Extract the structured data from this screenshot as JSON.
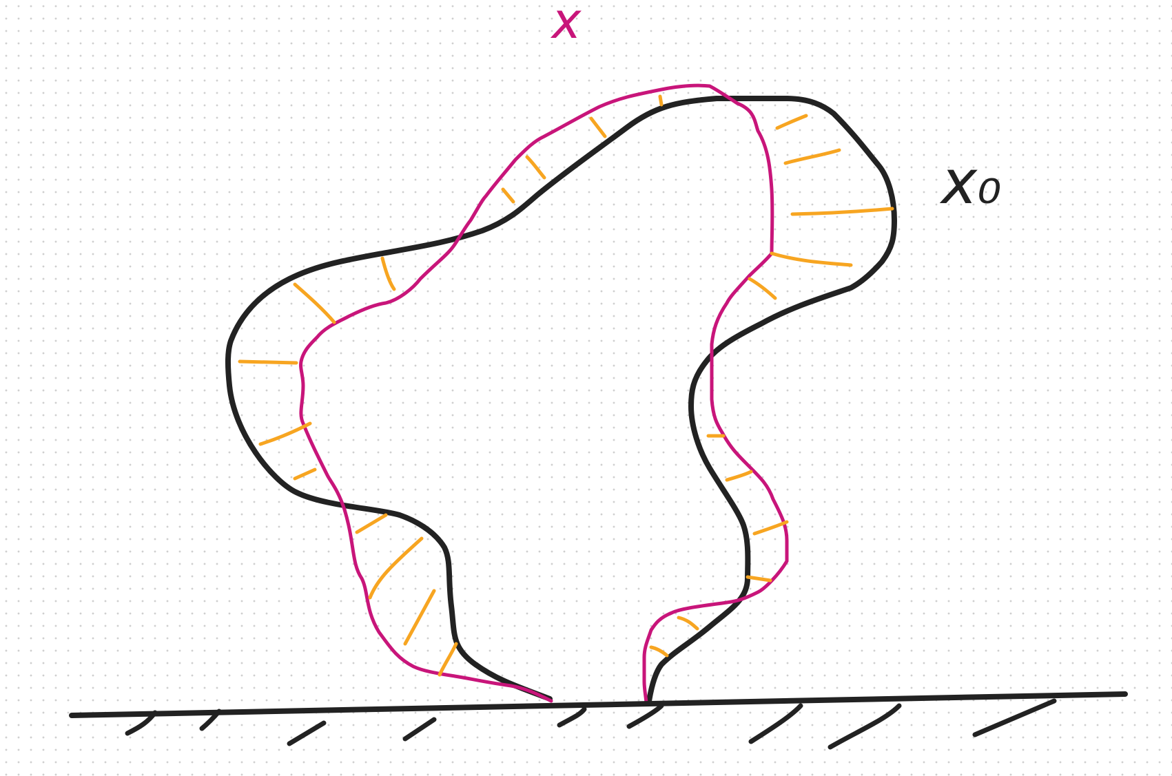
{
  "labels": {
    "deformed_label": "x",
    "reference_label": "x₀"
  },
  "colors": {
    "reference_outline": "#222222",
    "deformed_outline": "#c8157a",
    "displacement_lines": "#f7a521",
    "ground": "#222222"
  },
  "icons": {
    "fixed_support": "ground-hatch-icon"
  }
}
